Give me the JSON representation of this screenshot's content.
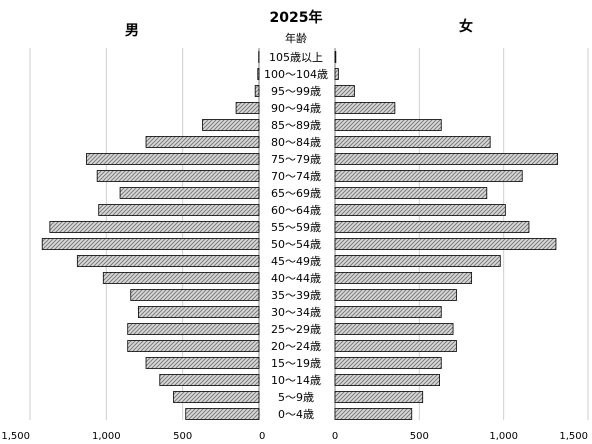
{
  "chart_data": {
    "type": "bar",
    "title": "2025年",
    "left_label": "男",
    "right_label": "女",
    "category_header": "年齢",
    "categories": [
      "105歳以上",
      "100～104歳",
      "95～99歳",
      "90～94歳",
      "85～89歳",
      "80～84歳",
      "75～79歳",
      "70～74歳",
      "65～69歳",
      "60～64歳",
      "55～59歳",
      "50～54歳",
      "45～49歳",
      "40～44歳",
      "35～39歳",
      "30～34歳",
      "25～29歳",
      "20～24歳",
      "15～19歳",
      "10～14歳",
      "5～9歳",
      "0～4歳"
    ],
    "series": [
      {
        "name": "男",
        "values": [
          2,
          8,
          25,
          150,
          370,
          740,
          1130,
          1060,
          910,
          1050,
          1370,
          1420,
          1190,
          1020,
          840,
          790,
          860,
          860,
          740,
          650,
          560,
          480
        ]
      },
      {
        "name": "女",
        "values": [
          5,
          20,
          115,
          355,
          630,
          920,
          1320,
          1110,
          900,
          1010,
          1150,
          1310,
          980,
          810,
          720,
          630,
          700,
          720,
          630,
          620,
          520,
          455
        ]
      }
    ],
    "xlim": [
      0,
      1500
    ],
    "x_ticks": [
      0,
      500,
      1000,
      1500
    ],
    "x_tick_labels_left": [
      "1,500",
      "1,000",
      "500",
      "0"
    ],
    "x_tick_labels_right": [
      "0",
      "500",
      "1,000",
      "1,500"
    ],
    "grid": true
  },
  "colors": {
    "bar_pattern_dark": "#7b7b7b",
    "bar_pattern_light": "#d9d9d9",
    "bar_stroke": "#000000",
    "grid": "#cfcfcf",
    "axis": "#7f7f7f"
  }
}
